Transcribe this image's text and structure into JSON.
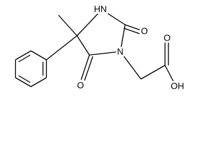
{
  "atoms": [
    "HN",
    "O",
    "N",
    "O",
    "O",
    "OH"
  ]
}
